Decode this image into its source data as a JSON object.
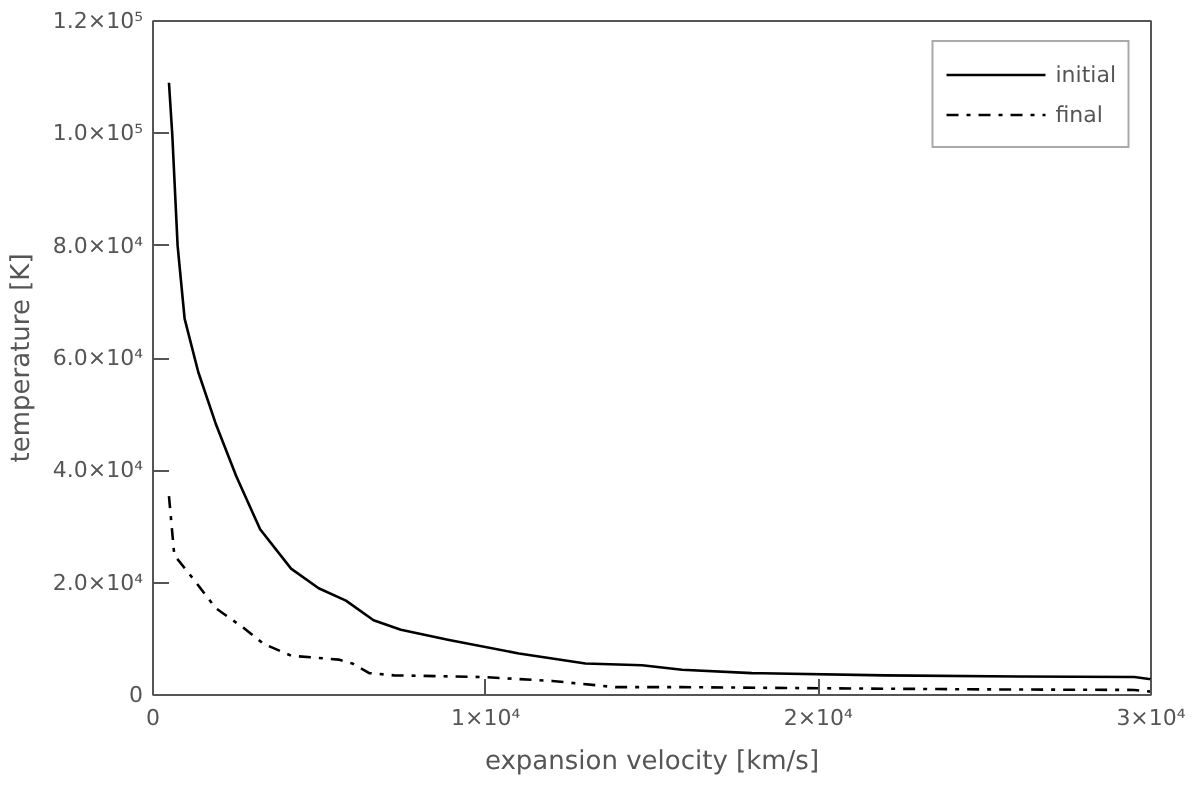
{
  "chart_data": {
    "type": "line",
    "xlabel": "expansion velocity [km/s]",
    "ylabel": "temperature [K]",
    "xlim": [
      0,
      30000
    ],
    "ylim": [
      0,
      120000
    ],
    "xticks": [
      {
        "value": 0,
        "label": "0"
      },
      {
        "value": 10000,
        "label": "1×10⁴"
      },
      {
        "value": 20000,
        "label": "2×10⁴"
      },
      {
        "value": 30000,
        "label": "3×10⁴"
      }
    ],
    "yticks": [
      {
        "value": 0,
        "label": "0"
      },
      {
        "value": 20000,
        "label": "2.0×10⁴"
      },
      {
        "value": 40000,
        "label": "4.0×10⁴"
      },
      {
        "value": 60000,
        "label": "6.0×10⁴"
      },
      {
        "value": 80000,
        "label": "8.0×10⁴"
      },
      {
        "value": 100000,
        "label": "1.0×10⁵"
      },
      {
        "value": 120000,
        "label": "1.2×10⁵"
      }
    ],
    "grid": false,
    "legend": "top right",
    "marker": "none",
    "series": [
      {
        "name": "initial",
        "color": "#000000",
        "line_style": "solid",
        "x": [
          480,
          580,
          740,
          950,
          1360,
          1880,
          2500,
          3220,
          4150,
          4980,
          5800,
          6630,
          7450,
          8900,
          11000,
          13000,
          14700,
          15900,
          18000,
          22000,
          26000,
          29500,
          30000
        ],
        "values": [
          109000,
          99700,
          80000,
          67000,
          57500,
          48400,
          39000,
          29500,
          22500,
          19000,
          16800,
          13300,
          11600,
          9800,
          7400,
          5600,
          5300,
          4500,
          3900,
          3500,
          3300,
          3200,
          2800
        ]
      },
      {
        "name": "final",
        "color": "#000000",
        "line_style": "dashdot",
        "x": [
          480,
          640,
          1260,
          1880,
          2710,
          3330,
          4150,
          5580,
          6000,
          6500,
          7250,
          9900,
          12000,
          13900,
          15900,
          20000,
          25000,
          29500,
          30000
        ],
        "values": [
          35400,
          24900,
          20300,
          15500,
          12000,
          9100,
          7000,
          6300,
          5600,
          3900,
          3500,
          3200,
          2500,
          1400,
          1400,
          1200,
          1000,
          900,
          600
        ]
      }
    ]
  }
}
